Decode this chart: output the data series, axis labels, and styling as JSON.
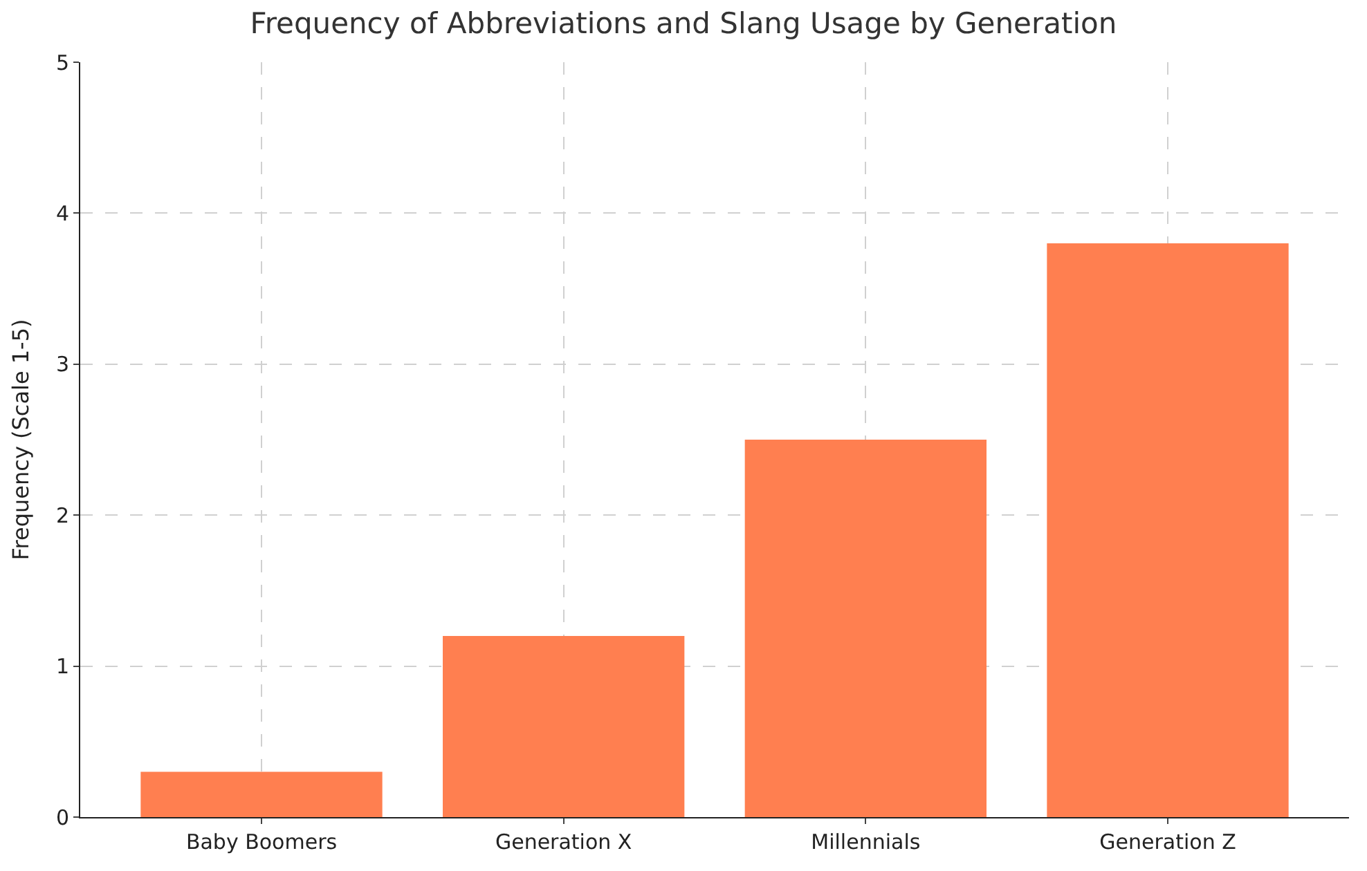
{
  "chart_data": {
    "type": "bar",
    "title": "Frequency of Abbreviations and Slang Usage by Generation",
    "ylabel": "Frequency (Scale 1-5)",
    "categories": [
      "Baby Boomers",
      "Generation X",
      "Millennials",
      "Generation Z"
    ],
    "values": [
      0.3,
      1.2,
      2.5,
      3.8
    ],
    "color": "#ff7f50",
    "ylim": [
      0,
      5
    ],
    "yticks": [
      0,
      1,
      2,
      3,
      4,
      5
    ],
    "grid": true
  }
}
